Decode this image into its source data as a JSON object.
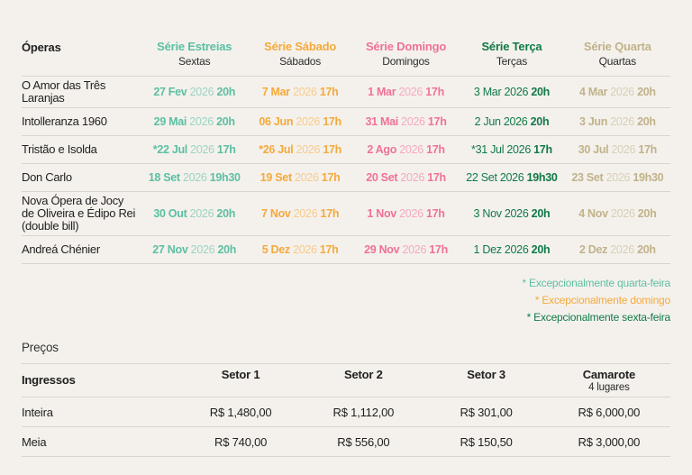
{
  "colors": {
    "background": "#F4F1EC",
    "separator_line": "#DAD4CB",
    "text": "#1F1F1F",
    "estreias": "#5CBFA3",
    "estreias_year": "#9BD4C3",
    "sabado": "#F5A93B",
    "sabado_year": "#F8CB8B",
    "domingo": "#EF7295",
    "domingo_year": "#F5A9BF",
    "terca": "#107A48",
    "terca_year": "#107A48",
    "quarta": "#C1B28A",
    "quarta_year": "#D7CFB6"
  },
  "opera_table": {
    "first_col_header": "Óperas",
    "columns": [
      {
        "label": "Série Estreias",
        "sublabel": "Sextas",
        "color": "#5CBFA3",
        "year_color": "#9BD4C3",
        "day_bold": true
      },
      {
        "label": "Série Sábado",
        "sublabel": "Sábados",
        "color": "#F5A93B",
        "year_color": "#F8CB8B",
        "day_bold": true
      },
      {
        "label": "Série Domingo",
        "sublabel": "Domingos",
        "color": "#EF7295",
        "year_color": "#F5A9BF",
        "day_bold": true
      },
      {
        "label": "Série Terça",
        "sublabel": "Terças",
        "color": "#107A48",
        "year_color": "#107A48",
        "day_bold": false
      },
      {
        "label": "Série Quarta",
        "sublabel": "Quartas",
        "color": "#C1B28A",
        "year_color": "#D7CFB6",
        "day_bold": true
      }
    ],
    "rows": [
      {
        "name": "O Amor das Três Laranjas",
        "dates": [
          {
            "day": "27 Fev",
            "year": "2026",
            "time": "20h"
          },
          {
            "day": "7 Mar",
            "year": "2026",
            "time": "17h"
          },
          {
            "day": "1 Mar",
            "year": "2026",
            "time": "17h"
          },
          {
            "day": "3 Mar",
            "year": "2026",
            "time": "20h"
          },
          {
            "day": "4 Mar",
            "year": "2026",
            "time": "20h"
          }
        ]
      },
      {
        "name": "Intolleranza 1960",
        "dates": [
          {
            "day": "29 Mai",
            "year": "2026",
            "time": "20h"
          },
          {
            "day": "06 Jun",
            "year": "2026",
            "time": "17h"
          },
          {
            "day": "31 Mai",
            "year": "2026",
            "time": "17h"
          },
          {
            "day": "2 Jun",
            "year": "2026",
            "time": "20h"
          },
          {
            "day": "3 Jun",
            "year": "2026",
            "time": "20h"
          }
        ]
      },
      {
        "name": "Tristão e Isolda",
        "dates": [
          {
            "day": "*22 Jul",
            "year": "2026",
            "time": "17h"
          },
          {
            "day": "*26 Jul",
            "year": "2026",
            "time": "17h"
          },
          {
            "day": "2 Ago",
            "year": "2026",
            "time": "17h"
          },
          {
            "day": "*31 Jul",
            "year": "2026",
            "time": "17h"
          },
          {
            "day": "30 Jul",
            "year": "2026",
            "time": "17h"
          }
        ]
      },
      {
        "name": "Don Carlo",
        "dates": [
          {
            "day": "18 Set",
            "year": "2026",
            "time": "19h30"
          },
          {
            "day": "19 Set",
            "year": "2026",
            "time": "17h"
          },
          {
            "day": "20 Set",
            "year": "2026",
            "time": "17h"
          },
          {
            "day": "22 Set",
            "year": "2026",
            "time": "19h30"
          },
          {
            "day": "23 Set",
            "year": "2026",
            "time": "19h30"
          }
        ]
      },
      {
        "name": "Nova Ópera de Jocy de Oliveira e Édipo Rei (double bill)",
        "dates": [
          {
            "day": "30 Out",
            "year": "2026",
            "time": "20h"
          },
          {
            "day": "7 Nov",
            "year": "2026",
            "time": "17h"
          },
          {
            "day": "1 Nov",
            "year": "2026",
            "time": "17h"
          },
          {
            "day": "3 Nov",
            "year": "2026",
            "time": "20h"
          },
          {
            "day": "4 Nov",
            "year": "2026",
            "time": "20h"
          }
        ]
      },
      {
        "name": "Andreá Chénier",
        "dates": [
          {
            "day": "27 Nov",
            "year": "2026",
            "time": "20h"
          },
          {
            "day": "5 Dez",
            "year": "2026",
            "time": "17h"
          },
          {
            "day": "29 Nov",
            "year": "2026",
            "time": "17h"
          },
          {
            "day": "1 Dez",
            "year": "2026",
            "time": "20h"
          },
          {
            "day": "2 Dez",
            "year": "2026",
            "time": "20h"
          }
        ]
      }
    ]
  },
  "footnotes": [
    {
      "text": "* Excepcionalmente quarta-feira",
      "color": "#5CBFA3"
    },
    {
      "text": "* Excepcionalmente domingo",
      "color": "#F5A93B"
    },
    {
      "text": "* Excepcionalmente sexta-feira",
      "color": "#107A48"
    }
  ],
  "prices": {
    "section_title": "Preços",
    "first_col_header": "Ingressos",
    "columns": [
      {
        "label": "Setor 1",
        "sublabel": ""
      },
      {
        "label": "Setor 2",
        "sublabel": ""
      },
      {
        "label": "Setor 3",
        "sublabel": ""
      },
      {
        "label": "Camarote",
        "sublabel": "4 lugares"
      }
    ],
    "rows": [
      {
        "name": "Inteira",
        "values": [
          "R$ 1,480,00",
          "R$ 1,112,00",
          "R$ 301,00",
          "R$ 6,000,00"
        ]
      },
      {
        "name": "Meia",
        "values": [
          "R$ 740,00",
          "R$ 556,00",
          "R$ 150,50",
          "R$ 3,000,00"
        ]
      }
    ]
  }
}
